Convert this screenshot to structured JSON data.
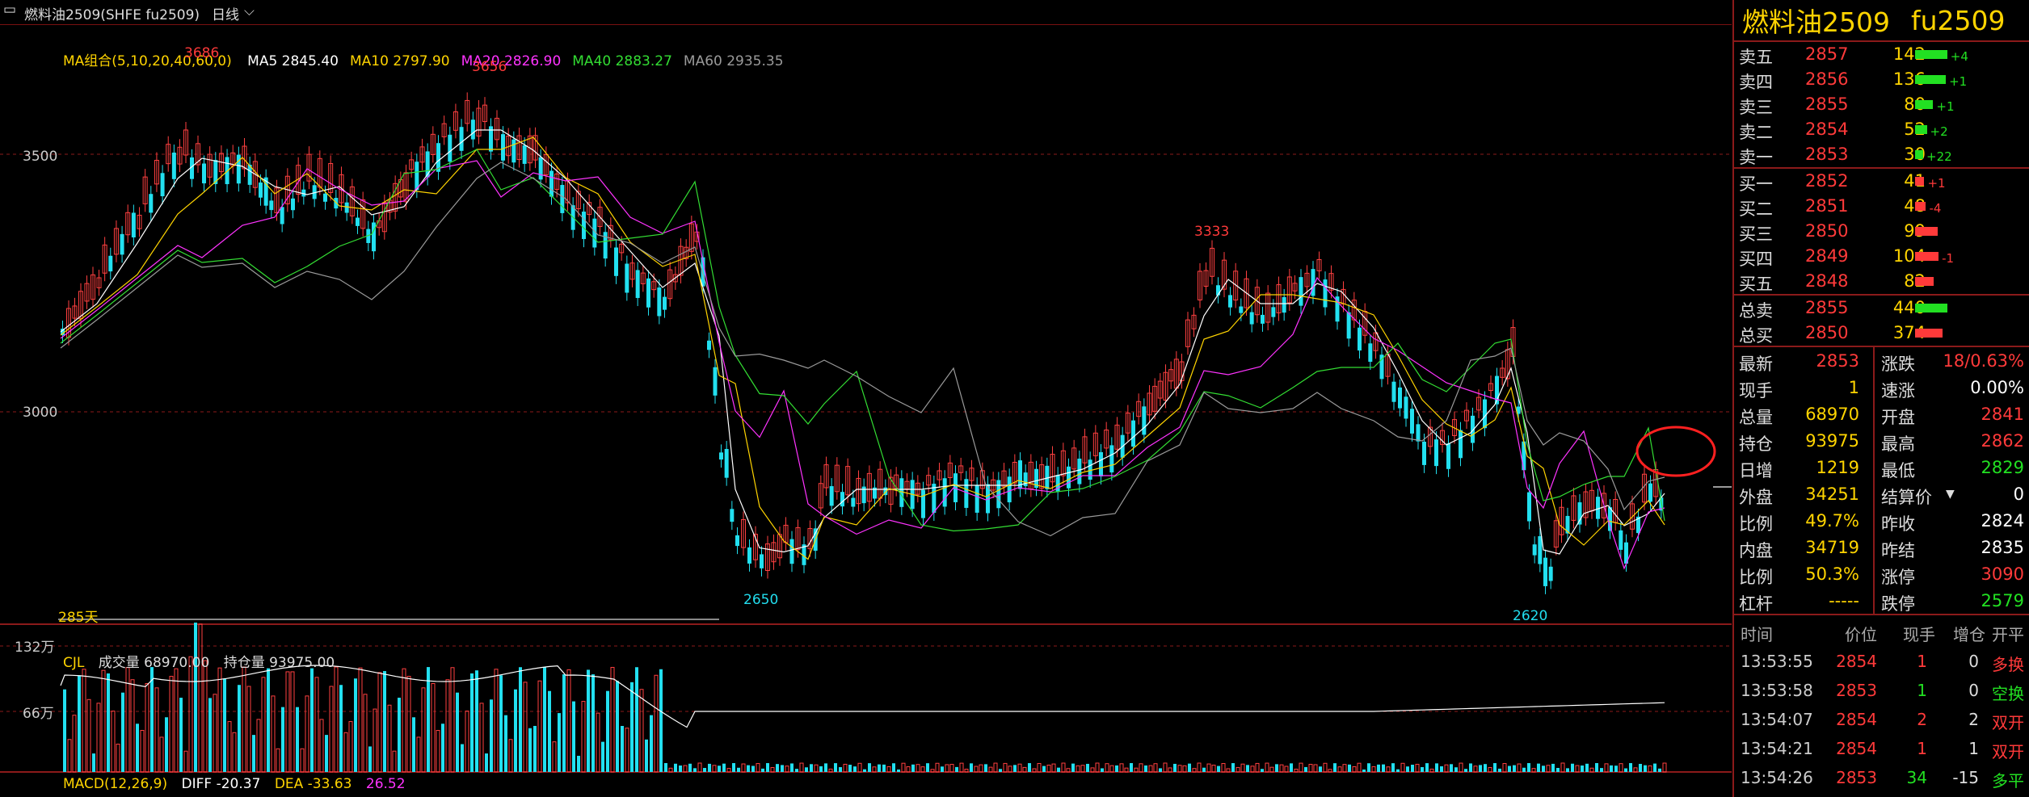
{
  "titlebar": {
    "symbol": "燃料油2509(SHFE fu2509)",
    "period": "日线"
  },
  "ma_legend": {
    "group": "MA组合(5,10,20,40,60,0)",
    "items": [
      {
        "label": "MA5 2845.40",
        "color": "#ffffff"
      },
      {
        "label": "MA10 2797.90",
        "color": "#ffd400"
      },
      {
        "label": "MA20 2826.90",
        "color": "#ff33ff"
      },
      {
        "label": "MA40 2883.27",
        "color": "#33dd33"
      },
      {
        "label": "MA60 2935.35",
        "color": "#9a9a9a"
      }
    ]
  },
  "y_labels": [
    "3500",
    "3000"
  ],
  "peaks": [
    "3686",
    "3656",
    "3333",
    "2650",
    "2620"
  ],
  "days_label": "285天",
  "volume_legend": {
    "name": "CJL",
    "volume": "成交量 68970.00",
    "oi": "持仓量 93975.00"
  },
  "volume_axis": [
    "132万",
    "66万"
  ],
  "macd_legend": {
    "name": "MACD(12,26,9)",
    "diff": "DIFF -20.37",
    "dea": "DEA -33.63",
    "macd": "26.52"
  },
  "panel": {
    "name": "燃料油2509",
    "code": "fu2509",
    "asks": [
      {
        "label": "卖五",
        "price": "2857",
        "vol": "142",
        "chg": "+4"
      },
      {
        "label": "卖四",
        "price": "2856",
        "vol": "136",
        "chg": "+1"
      },
      {
        "label": "卖三",
        "price": "2855",
        "vol": "80",
        "chg": "+1"
      },
      {
        "label": "卖二",
        "price": "2854",
        "vol": "52",
        "chg": "+2"
      },
      {
        "label": "卖一",
        "price": "2853",
        "vol": "30",
        "chg": "+22"
      }
    ],
    "bids": [
      {
        "label": "买一",
        "price": "2852",
        "vol": "41",
        "chg": "+1"
      },
      {
        "label": "买二",
        "price": "2851",
        "vol": "48",
        "chg": "-4"
      },
      {
        "label": "买三",
        "price": "2850",
        "vol": "99",
        "chg": ""
      },
      {
        "label": "买四",
        "price": "2849",
        "vol": "104",
        "chg": "-1"
      },
      {
        "label": "买五",
        "price": "2848",
        "vol": "82",
        "chg": ""
      }
    ],
    "totals": [
      {
        "label": "总卖",
        "price": "2855",
        "vol": "440"
      },
      {
        "label": "总买",
        "price": "2850",
        "vol": "374"
      }
    ],
    "quote": [
      {
        "l1": "最新",
        "v1": "2853",
        "l2": "涨跌",
        "v2": "18/0.63%"
      },
      {
        "l1": "现手",
        "v1": "1",
        "l2": "速涨",
        "v2": "0.00%"
      },
      {
        "l1": "总量",
        "v1": "68970",
        "l2": "开盘",
        "v2": "2841"
      },
      {
        "l1": "持仓",
        "v1": "93975",
        "l2": "最高",
        "v2": "2862"
      },
      {
        "l1": "日增",
        "v1": "1219",
        "l2": "最低",
        "v2": "2829"
      },
      {
        "l1": "外盘",
        "v1": "34251",
        "l2": "结算价",
        "v2": "0"
      },
      {
        "l1": "比例",
        "v1": "49.7%",
        "l2": "昨收",
        "v2": "2824"
      },
      {
        "l1": "内盘",
        "v1": "34719",
        "l2": "昨结",
        "v2": "2835"
      },
      {
        "l1": "比例",
        "v1": "50.3%",
        "l2": "涨停",
        "v2": "3090"
      },
      {
        "l1": "杠杆",
        "v1": "-----",
        "l2": "跌停",
        "v2": "2579"
      }
    ],
    "tick_header": [
      "时间",
      "价位",
      "现手",
      "增仓",
      "开平"
    ],
    "ticks": [
      {
        "time": "13:53:55",
        "price": "2854",
        "vol": "1",
        "inc": "0",
        "type": "多换"
      },
      {
        "time": "13:53:58",
        "price": "2853",
        "vol": "1",
        "inc": "0",
        "type": "空换"
      },
      {
        "time": "13:54:07",
        "price": "2854",
        "vol": "2",
        "inc": "2",
        "type": "双开"
      },
      {
        "time": "13:54:21",
        "price": "2854",
        "vol": "1",
        "inc": "1",
        "type": "双开"
      },
      {
        "time": "13:54:26",
        "price": "2853",
        "vol": "34",
        "inc": "-15",
        "type": "多平"
      }
    ]
  }
}
